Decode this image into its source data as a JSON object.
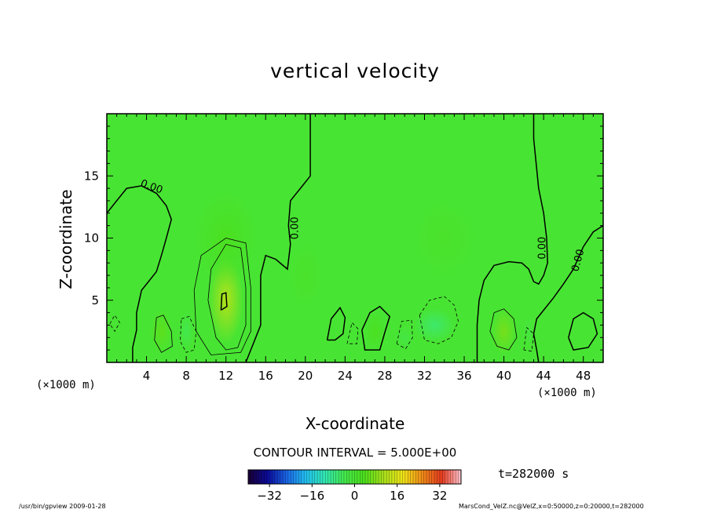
{
  "chart_data": {
    "type": "heatmap",
    "title": "vertical velocity",
    "xlabel": "X-coordinate",
    "ylabel": "Z-coordinate",
    "x_unit_label": "(×1000 m)",
    "xlim": [
      0,
      50
    ],
    "ylim": [
      0,
      20
    ],
    "x_ticks": [
      4,
      8,
      12,
      16,
      20,
      24,
      28,
      32,
      36,
      40,
      44,
      48
    ],
    "y_ticks": [
      5,
      10,
      15
    ],
    "contour_interval": "CONTOUR INTERVAL = 5.000E+00",
    "contour_labels": [
      "0.00",
      "0.00",
      "0.00",
      "0.00"
    ],
    "colorbar": {
      "min": -40,
      "max": 40,
      "tick_values": [
        -32,
        -16,
        0,
        16,
        32
      ],
      "tick_labels": [
        "−32",
        "−16",
        "0",
        "16",
        "32"
      ]
    },
    "colormap": [
      "#1a0033",
      "#0a0a9a",
      "#1a66e6",
      "#22c0ee",
      "#33e8b0",
      "#44e84a",
      "#4cdf1c",
      "#a8e01a",
      "#f0e418",
      "#ef8a18",
      "#e43a1e",
      "#ffc4d0"
    ],
    "background_value": 0,
    "field_features": [
      {
        "x": 12,
        "z": 5,
        "value": 12
      },
      {
        "x": 5.5,
        "z": 2.5,
        "value": 5
      },
      {
        "x": 40,
        "z": 2.5,
        "value": 7
      },
      {
        "x": 33,
        "z": 3,
        "value": -6
      },
      {
        "x": 8,
        "z": 2.5,
        "value": -4
      },
      {
        "x": 27,
        "z": 2.5,
        "value": 3
      },
      {
        "x": 30,
        "z": 2,
        "value": -3
      },
      {
        "x": 42.5,
        "z": 2.5,
        "value": -2
      },
      {
        "x": 12,
        "z": 10,
        "value": 3
      },
      {
        "x": 20,
        "z": 7,
        "value": 1.5
      },
      {
        "x": 34,
        "z": 10,
        "value": 1.5
      }
    ]
  },
  "time_label": "t=282000 s",
  "footer": {
    "left": "/usr/bin/gpview   2009-01-28",
    "right": "MarsCond_VelZ.nc@VelZ,x=0:50000,z=0:20000,t=282000"
  }
}
